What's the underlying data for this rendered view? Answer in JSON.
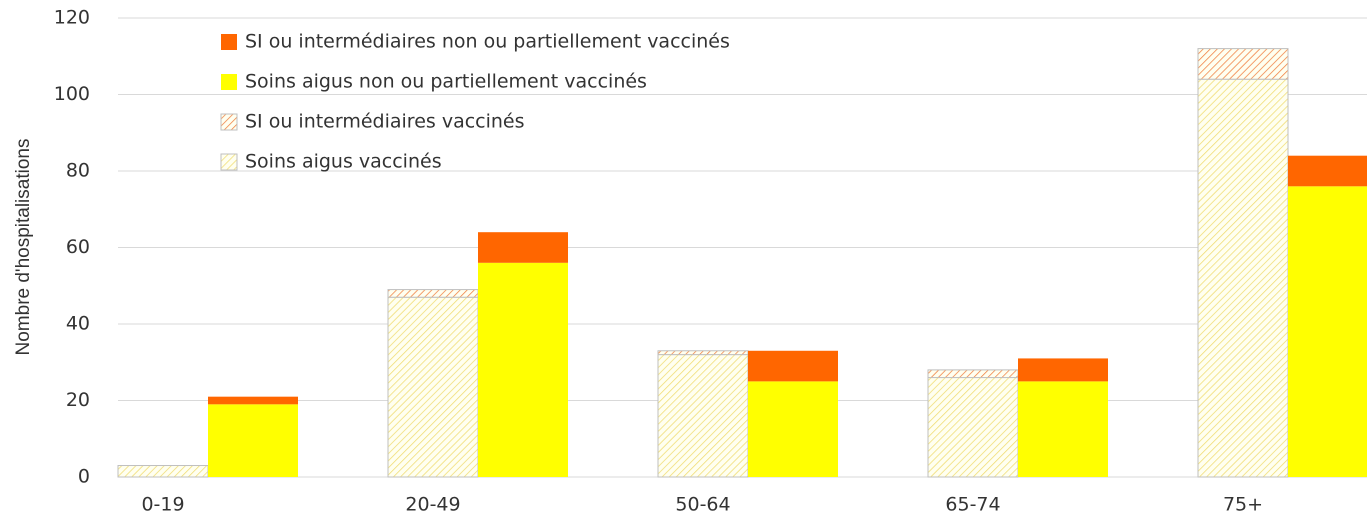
{
  "chart_data": {
    "type": "grouped-stacked-bar",
    "y_label": "Nombre d'hospitalisations",
    "categories": [
      "0-19",
      "20-49",
      "50-64",
      "65-74",
      "75+"
    ],
    "series": [
      {
        "name": "SI ou intermédiaires non ou partiellement vaccinés",
        "color": "#ff6600",
        "hatch": false,
        "stack": 1,
        "values": [
          2,
          8,
          8,
          6,
          8
        ]
      },
      {
        "name": "Soins aigus non ou partiellement vaccinés",
        "color": "#ffff00",
        "hatch": false,
        "stack": 1,
        "values": [
          19,
          56,
          25,
          25,
          76
        ]
      },
      {
        "name": "SI ou intermédiaires vaccinés",
        "color": "#f08040",
        "hatch": true,
        "stack": 0,
        "values": [
          0,
          2,
          1,
          2,
          8
        ]
      },
      {
        "name": "Soins aigus vaccinés",
        "color": "#f0dc70",
        "hatch": true,
        "stack": 0,
        "values": [
          3,
          47,
          32,
          26,
          104
        ]
      }
    ],
    "ylim": [
      0,
      120
    ],
    "yticks": [
      0,
      20,
      40,
      60,
      80,
      100,
      120
    ],
    "grid": true
  }
}
